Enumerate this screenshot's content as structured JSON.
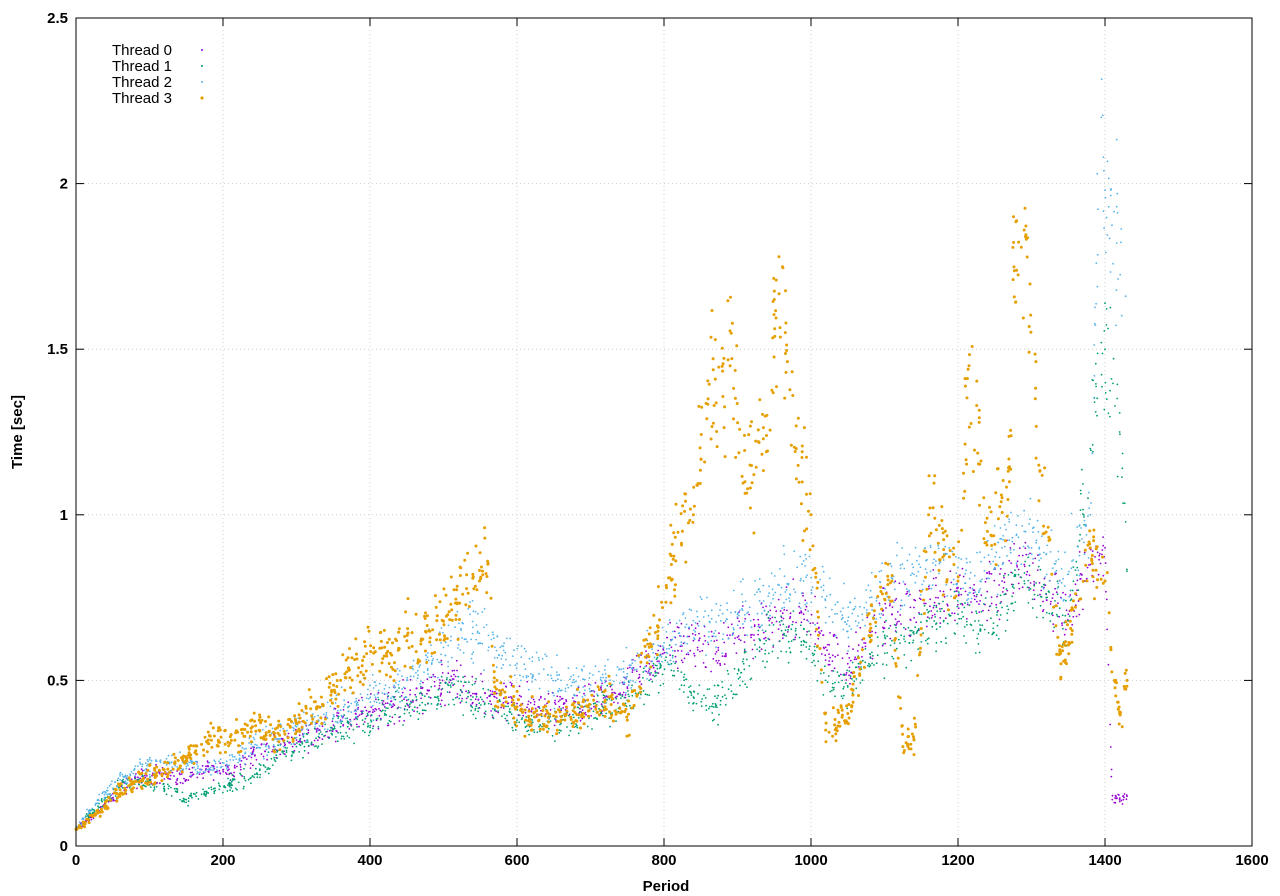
{
  "chart_data": {
    "type": "scatter",
    "title": "",
    "xlabel": "Period",
    "ylabel": "Time [sec]",
    "xlim": [
      0,
      1600
    ],
    "ylim": [
      0,
      2.5
    ],
    "x_ticks": [
      0,
      200,
      400,
      600,
      800,
      1000,
      1200,
      1400,
      1600
    ],
    "y_ticks": [
      0,
      0.5,
      1,
      1.5,
      2,
      2.5
    ],
    "x_tick_labels": [
      "0",
      "200",
      "400",
      "600",
      "800",
      "1000",
      "1200",
      "1400",
      "1600"
    ],
    "y_tick_labels": [
      "0",
      "0.5",
      "1",
      "1.5",
      "2",
      "2.5"
    ],
    "grid": true,
    "legend_position": "top-left",
    "series": [
      {
        "name": "Thread 0",
        "color": "#9400d3",
        "points": [
          [
            0,
            0.05
          ],
          [
            30,
            0.1
          ],
          [
            60,
            0.17
          ],
          [
            90,
            0.21
          ],
          [
            120,
            0.22
          ],
          [
            150,
            0.2
          ],
          [
            180,
            0.24
          ],
          [
            210,
            0.22
          ],
          [
            240,
            0.28
          ],
          [
            270,
            0.3
          ],
          [
            300,
            0.32
          ],
          [
            330,
            0.35
          ],
          [
            360,
            0.38
          ],
          [
            390,
            0.4
          ],
          [
            420,
            0.42
          ],
          [
            450,
            0.44
          ],
          [
            480,
            0.47
          ],
          [
            510,
            0.5
          ],
          [
            540,
            0.46
          ],
          [
            570,
            0.45
          ],
          [
            600,
            0.43
          ],
          [
            630,
            0.42
          ],
          [
            660,
            0.41
          ],
          [
            690,
            0.42
          ],
          [
            720,
            0.45
          ],
          [
            750,
            0.48
          ],
          [
            780,
            0.55
          ],
          [
            810,
            0.6
          ],
          [
            840,
            0.62
          ],
          [
            870,
            0.58
          ],
          [
            900,
            0.63
          ],
          [
            930,
            0.66
          ],
          [
            960,
            0.68
          ],
          [
            990,
            0.7
          ],
          [
            1020,
            0.6
          ],
          [
            1050,
            0.55
          ],
          [
            1080,
            0.65
          ],
          [
            1110,
            0.7
          ],
          [
            1140,
            0.72
          ],
          [
            1170,
            0.75
          ],
          [
            1200,
            0.78
          ],
          [
            1230,
            0.74
          ],
          [
            1260,
            0.8
          ],
          [
            1290,
            0.85
          ],
          [
            1320,
            0.76
          ],
          [
            1350,
            0.7
          ],
          [
            1380,
            0.85
          ],
          [
            1400,
            0.9
          ],
          [
            1410,
            0.14
          ],
          [
            1415,
            0.15
          ],
          [
            1420,
            0.14
          ],
          [
            1425,
            0.14
          ],
          [
            1430,
            0.15
          ]
        ]
      },
      {
        "name": "Thread 1",
        "color": "#009e73",
        "points": [
          [
            0,
            0.05
          ],
          [
            30,
            0.12
          ],
          [
            60,
            0.18
          ],
          [
            90,
            0.2
          ],
          [
            120,
            0.18
          ],
          [
            150,
            0.14
          ],
          [
            180,
            0.16
          ],
          [
            210,
            0.19
          ],
          [
            240,
            0.21
          ],
          [
            270,
            0.26
          ],
          [
            300,
            0.3
          ],
          [
            330,
            0.33
          ],
          [
            360,
            0.36
          ],
          [
            390,
            0.38
          ],
          [
            420,
            0.4
          ],
          [
            450,
            0.43
          ],
          [
            480,
            0.45
          ],
          [
            510,
            0.48
          ],
          [
            540,
            0.45
          ],
          [
            570,
            0.42
          ],
          [
            600,
            0.38
          ],
          [
            630,
            0.36
          ],
          [
            660,
            0.37
          ],
          [
            690,
            0.39
          ],
          [
            720,
            0.42
          ],
          [
            750,
            0.44
          ],
          [
            780,
            0.5
          ],
          [
            810,
            0.55
          ],
          [
            840,
            0.45
          ],
          [
            870,
            0.42
          ],
          [
            900,
            0.52
          ],
          [
            930,
            0.6
          ],
          [
            960,
            0.65
          ],
          [
            990,
            0.62
          ],
          [
            1020,
            0.5
          ],
          [
            1050,
            0.48
          ],
          [
            1080,
            0.58
          ],
          [
            1110,
            0.62
          ],
          [
            1140,
            0.64
          ],
          [
            1170,
            0.67
          ],
          [
            1200,
            0.7
          ],
          [
            1230,
            0.65
          ],
          [
            1260,
            0.72
          ],
          [
            1290,
            0.8
          ],
          [
            1320,
            0.75
          ],
          [
            1350,
            0.68
          ],
          [
            1380,
            1.2
          ],
          [
            1395,
            1.52
          ],
          [
            1400,
            1.5
          ],
          [
            1420,
            1.25
          ],
          [
            1430,
            0.83
          ]
        ]
      },
      {
        "name": "Thread 2",
        "color": "#56b4e9",
        "points": [
          [
            0,
            0.05
          ],
          [
            30,
            0.14
          ],
          [
            60,
            0.2
          ],
          [
            90,
            0.24
          ],
          [
            120,
            0.25
          ],
          [
            150,
            0.24
          ],
          [
            180,
            0.23
          ],
          [
            210,
            0.26
          ],
          [
            240,
            0.3
          ],
          [
            270,
            0.33
          ],
          [
            300,
            0.36
          ],
          [
            330,
            0.38
          ],
          [
            360,
            0.41
          ],
          [
            390,
            0.44
          ],
          [
            420,
            0.46
          ],
          [
            450,
            0.5
          ],
          [
            480,
            0.56
          ],
          [
            510,
            0.62
          ],
          [
            540,
            0.66
          ],
          [
            570,
            0.6
          ],
          [
            600,
            0.55
          ],
          [
            630,
            0.52
          ],
          [
            660,
            0.5
          ],
          [
            690,
            0.48
          ],
          [
            720,
            0.5
          ],
          [
            750,
            0.52
          ],
          [
            780,
            0.56
          ],
          [
            810,
            0.62
          ],
          [
            840,
            0.68
          ],
          [
            870,
            0.65
          ],
          [
            900,
            0.7
          ],
          [
            930,
            0.74
          ],
          [
            960,
            0.78
          ],
          [
            990,
            0.8
          ],
          [
            1020,
            0.72
          ],
          [
            1050,
            0.68
          ],
          [
            1080,
            0.75
          ],
          [
            1110,
            0.8
          ],
          [
            1140,
            0.82
          ],
          [
            1170,
            0.86
          ],
          [
            1200,
            0.84
          ],
          [
            1230,
            0.8
          ],
          [
            1260,
            0.9
          ],
          [
            1290,
            0.95
          ],
          [
            1320,
            0.88
          ],
          [
            1350,
            0.82
          ],
          [
            1380,
            1.0
          ],
          [
            1395,
            2.2
          ],
          [
            1398,
            2.08
          ],
          [
            1400,
            1.98
          ],
          [
            1405,
            1.93
          ],
          [
            1428,
            1.66
          ]
        ]
      },
      {
        "name": "Thread 3",
        "color": "#e69f00",
        "points": [
          [
            0,
            0.05
          ],
          [
            30,
            0.1
          ],
          [
            60,
            0.17
          ],
          [
            90,
            0.2
          ],
          [
            120,
            0.23
          ],
          [
            150,
            0.27
          ],
          [
            180,
            0.32
          ],
          [
            210,
            0.33
          ],
          [
            240,
            0.36
          ],
          [
            270,
            0.34
          ],
          [
            300,
            0.37
          ],
          [
            330,
            0.42
          ],
          [
            360,
            0.5
          ],
          [
            390,
            0.56
          ],
          [
            420,
            0.6
          ],
          [
            450,
            0.62
          ],
          [
            480,
            0.65
          ],
          [
            510,
            0.73
          ],
          [
            540,
            0.82
          ],
          [
            560,
            0.86
          ],
          [
            570,
            0.48
          ],
          [
            600,
            0.42
          ],
          [
            630,
            0.38
          ],
          [
            660,
            0.38
          ],
          [
            690,
            0.4
          ],
          [
            720,
            0.44
          ],
          [
            750,
            0.38
          ],
          [
            780,
            0.6
          ],
          [
            810,
            0.85
          ],
          [
            840,
            1.0
          ],
          [
            860,
            1.35
          ],
          [
            890,
            1.45
          ],
          [
            910,
            1.1
          ],
          [
            940,
            1.3
          ],
          [
            950,
            1.65
          ],
          [
            965,
            1.55
          ],
          [
            980,
            1.2
          ],
          [
            1000,
            1.0
          ],
          [
            1020,
            0.35
          ],
          [
            1050,
            0.4
          ],
          [
            1080,
            0.65
          ],
          [
            1110,
            0.8
          ],
          [
            1125,
            0.3
          ],
          [
            1140,
            0.32
          ],
          [
            1160,
            1.0
          ],
          [
            1200,
            0.8
          ],
          [
            1215,
            1.45
          ],
          [
            1240,
            0.95
          ],
          [
            1270,
            1.1
          ],
          [
            1275,
            1.71
          ],
          [
            1290,
            1.86
          ],
          [
            1310,
            1.15
          ],
          [
            1340,
            0.55
          ],
          [
            1380,
            0.9
          ],
          [
            1400,
            0.8
          ],
          [
            1420,
            0.4
          ],
          [
            1430,
            0.5
          ]
        ]
      }
    ]
  }
}
